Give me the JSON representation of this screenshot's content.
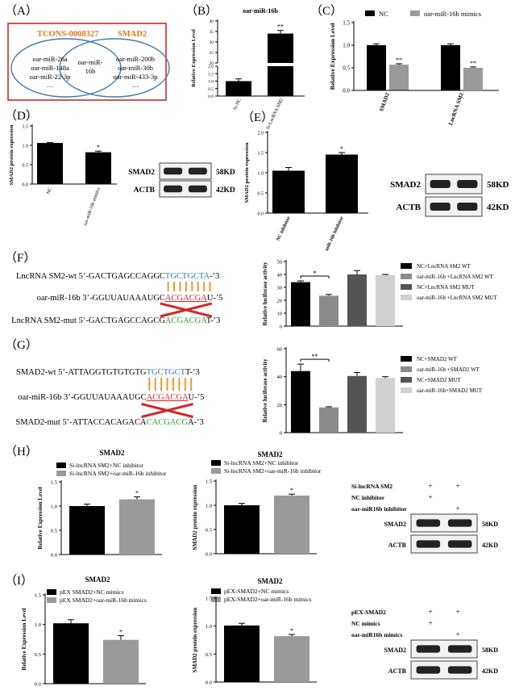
{
  "panels": {
    "A": {
      "letter": "（A）",
      "left_label": "TCONS-0008327",
      "right_label": "SMAD2",
      "left_items": [
        "oar-miR-26a",
        "oar-miR-148a",
        "oar-miR-22-3p",
        "…"
      ],
      "center_items": [
        "oar-miR-",
        "16b"
      ],
      "right_items": [
        "oar-miR-200b",
        "oar-miR-30b",
        "oar-miR-433-3p",
        "…"
      ],
      "colors": {
        "border": "#d62728",
        "left_label": "#e07b1a",
        "right_label": "#e07b1a",
        "circle": "#3d7bb0"
      }
    },
    "B": {
      "letter": "（B）",
      "chart_data": {
        "type": "bar",
        "title": "oar-miR-16b",
        "ylabel": "Relative Expression Level",
        "categories": [
          "Si-NC",
          "Si-LncRNA SM2"
        ],
        "values": [
          1.0,
          34.0
        ],
        "errors": [
          0.15,
          1.5
        ],
        "broken_axis": true,
        "ticks_lower": [
          "0.0",
          "0.5",
          "1.0",
          "1.5",
          "2.0"
        ],
        "ticks_upper": [
          "20",
          "25",
          "30",
          "35",
          "40"
        ],
        "sig": [
          "",
          "**"
        ]
      }
    },
    "C": {
      "letter": "（C）",
      "chart_data": {
        "type": "bar",
        "ylabel": "Relative Expression Level",
        "categories": [
          "SMAD2",
          "LncRNA SM2"
        ],
        "series": [
          {
            "name": "NC",
            "values": [
              1.0,
              1.0
            ],
            "errors": [
              0.03,
              0.03
            ],
            "color": "#000000"
          },
          {
            "name": "oar-miR-16b mimics",
            "values": [
              0.57,
              0.5
            ],
            "errors": [
              0.02,
              0.02
            ],
            "color": "#9a9a9a"
          }
        ],
        "ylim": [
          0,
          1.5
        ],
        "ticks": [
          "0.0",
          "0.5",
          "1.0",
          "1.5"
        ],
        "sig": [
          "**",
          "**"
        ]
      }
    },
    "D": {
      "letter": "（D）",
      "chart_data": {
        "type": "bar",
        "ylabel": "SMAD2 protein expression",
        "categories": [
          "NC",
          "oar-miR-16b mimics"
        ],
        "values": [
          1.06,
          0.82
        ],
        "errors": [
          0.01,
          0.03
        ],
        "ylim": [
          0,
          1.5
        ],
        "ticks": [
          "0.0",
          "0.5",
          "1.0",
          "1.5"
        ],
        "sig": [
          "",
          "*"
        ]
      },
      "blot": {
        "rows": [
          "SMAD2",
          "ACTB"
        ],
        "sizes": [
          "58KD",
          "42KD"
        ]
      }
    },
    "E": {
      "letter": "（E）",
      "chart_data": {
        "type": "bar",
        "ylabel": "SMAD2 protein expression",
        "categories": [
          "NC inhibitor",
          "miR-16b inhibitor"
        ],
        "values": [
          1.05,
          1.45
        ],
        "errors": [
          0.08,
          0.05
        ],
        "ylim": [
          0,
          2.0
        ],
        "ticks": [
          "0.0",
          "0.5",
          "1.0",
          "1.5",
          "2.0"
        ],
        "sig": [
          "",
          "*"
        ]
      },
      "blot": {
        "rows": [
          "SMAD2",
          "ACTB"
        ],
        "sizes": [
          "58KD",
          "42KD"
        ]
      }
    },
    "F": {
      "letter": "（F）",
      "seq_wt_prefix": "LncRNA SM2-wt 5’-GACTGAGCCAGGC",
      "seq_wt_site": "TGCTGCTA",
      "seq_wt_suffix": "-’3",
      "seq_mir_prefix": "oar-miR-16b 3’-GGUUAUAAAUGC",
      "seq_mir_site": "ACGACGA",
      "seq_mir_suffix": "U-’5",
      "seq_mut_prefix": "LncRNA SM2-mut 5’-GACTGAGCCAGCG",
      "seq_mut_site": "ACGACGA",
      "seq_mut_suffix": "T-’3",
      "chart_data": {
        "type": "bar",
        "ylabel": "Relative luciferase activity",
        "categories": [
          "NC+LncRNA SM2 WT",
          "oar-miR-16b +LncRNA SM2 WT",
          "NC+LncRNA SM2 MUT",
          "oar-miR-16b +LncRNA SM2 MUT"
        ],
        "values": [
          34,
          23.5,
          40,
          39.5
        ],
        "errors": [
          1,
          1,
          3,
          0.5
        ],
        "colors": [
          "#000000",
          "#8a8a8a",
          "#555555",
          "#d0d0d0"
        ],
        "ylim": [
          0,
          50
        ],
        "ticks": [
          "0",
          "10",
          "20",
          "30",
          "40",
          "50"
        ],
        "sig_label": "*"
      }
    },
    "G": {
      "letter": "（G）",
      "seq_wt_prefix": "SMAD2-wt 5’-ATTAGGTGTGTGTG",
      "seq_wt_site": "TGCTGCT",
      "seq_wt_suffix": "T-’3",
      "seq_mir_prefix": "oar-miR-16b 3’-GGUUAUAAAUGC",
      "seq_mir_site": "ACGACGA",
      "seq_mir_suffix": "U-’5",
      "seq_mut_prefix": "SMAD2-mut 5’-ATTACCACAGACA",
      "seq_mut_site": "CACGACG",
      "seq_mut_suffix": "A-’3",
      "chart_data": {
        "type": "bar",
        "ylabel": "Relative luciferase activity",
        "categories": [
          "NC+SMAD2 WT",
          "oar-miR-16b +SMAD2 WT",
          "NC+SMAD2 MUT",
          "oar-miR-16b+SMAD2 MUT"
        ],
        "values": [
          44,
          18,
          40.5,
          39
        ],
        "errors": [
          5,
          0.5,
          2.5,
          1
        ],
        "colors": [
          "#000000",
          "#8a8a8a",
          "#555555",
          "#d0d0d0"
        ],
        "ylim": [
          0,
          60
        ],
        "ticks": [
          "0",
          "20",
          "40",
          "60"
        ],
        "sig_label": "**"
      }
    },
    "H": {
      "letter": "（H）",
      "chart1": {
        "type": "bar",
        "title": "SMAD2",
        "ylabel": "Relative Expression Level",
        "series": [
          {
            "name": "Si-lncRNA SM2+NC inhibitor",
            "values": [
              1.0
            ],
            "errors": [
              0.04
            ],
            "color": "#000000"
          },
          {
            "name": "Si-lncRNA SM2+oar-miR-16b inhibitor",
            "values": [
              1.14
            ],
            "errors": [
              0.05
            ],
            "color": "#9a9a9a"
          }
        ],
        "ylim": [
          0,
          1.5
        ],
        "ticks": [
          "0.0",
          "0.5",
          "1.0",
          "1.5"
        ],
        "sig": [
          "",
          "*"
        ]
      },
      "chart2": {
        "type": "bar",
        "title": "SMAD2",
        "ylabel": "SMAD2 protein expression",
        "series": [
          {
            "name": "Si-lncRNA SM2+NC inhibitor",
            "values": [
              1.0
            ],
            "errors": [
              0.04
            ],
            "color": "#000000"
          },
          {
            "name": "Si-lncRNA SM2+oar-miR-16b inhibitor",
            "values": [
              1.2
            ],
            "errors": [
              0.03
            ],
            "color": "#9a9a9a"
          }
        ],
        "ylim": [
          0,
          1.5
        ],
        "ticks": [
          "0.0",
          "0.5",
          "1.0",
          "1.5"
        ],
        "sig": [
          "",
          "*"
        ]
      },
      "blot": {
        "conditions": [
          "Si-lncRNA SM2",
          "NC inhibitor",
          "oar-miR16b inhibitor"
        ],
        "lane1": [
          "+",
          "+",
          ""
        ],
        "lane2": [
          "+",
          "",
          "+"
        ],
        "rows": [
          "SMAD2",
          "ACTB"
        ],
        "sizes": [
          "58KD",
          "42KD"
        ]
      }
    },
    "I": {
      "letter": "（I）",
      "chart1": {
        "type": "bar",
        "title": "SMAD2",
        "ylabel": "Relative Expression Level",
        "series": [
          {
            "name": "pEX SMAD2+NC mimics",
            "values": [
              1.02
            ],
            "errors": [
              0.06
            ],
            "color": "#000000"
          },
          {
            "name": "pEX SMAD2+oar-miR-16b mimics",
            "values": [
              0.74
            ],
            "errors": [
              0.07
            ],
            "color": "#9a9a9a"
          }
        ],
        "ylim": [
          0,
          1.5
        ],
        "ticks": [
          "0.0",
          "0.5",
          "1.0",
          "1.5"
        ],
        "sig": [
          "",
          "*"
        ]
      },
      "chart2": {
        "type": "bar",
        "title": "SMAD2",
        "ylabel": "SMAD2 protein expression",
        "series": [
          {
            "name": "pEX-SMAD2+NC mimics",
            "values": [
              1.01
            ],
            "errors": [
              0.04
            ],
            "color": "#000000"
          },
          {
            "name": "pEX-SMAD2+oar-miR-16b mimics",
            "values": [
              0.82
            ],
            "errors": [
              0.03
            ],
            "color": "#9a9a9a"
          }
        ],
        "ylim": [
          0,
          1.5
        ],
        "ticks": [
          "0.0",
          "0.5",
          "1.0",
          "1.5"
        ],
        "sig": [
          "",
          "*"
        ]
      },
      "blot": {
        "conditions": [
          "pEX-SMAD2",
          "NC mimics",
          "oar-miR16b mimics"
        ],
        "lane1": [
          "+",
          "+",
          ""
        ],
        "lane2": [
          "+",
          "",
          "+"
        ],
        "rows": [
          "SMAD2",
          "ACTB"
        ],
        "sizes": [
          "58KD",
          "42KD"
        ]
      }
    }
  }
}
